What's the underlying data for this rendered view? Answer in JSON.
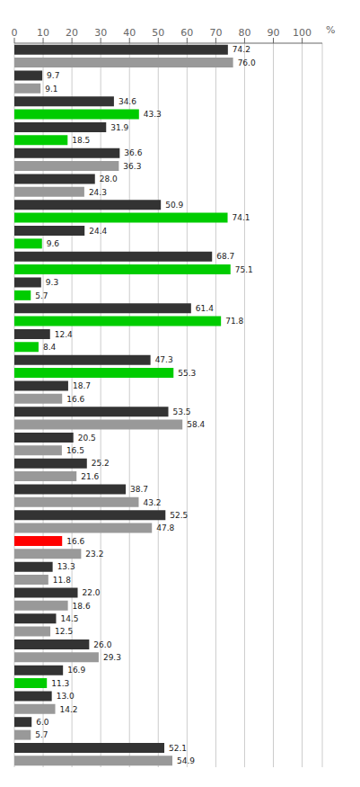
{
  "chart_data": {
    "type": "bar",
    "orientation": "horizontal",
    "categories": [
      null,
      null,
      null,
      null,
      null,
      null,
      null,
      null,
      null,
      null,
      null,
      null,
      null,
      null,
      null,
      null,
      null,
      null,
      null,
      null,
      null,
      null,
      null,
      null,
      null,
      null,
      null,
      null,
      null,
      null,
      null,
      null,
      null,
      null,
      null,
      null,
      null,
      null,
      null,
      null,
      null,
      null,
      null,
      null,
      null,
      null,
      null,
      null,
      null,
      null,
      null,
      null,
      null,
      null,
      null,
      null
    ],
    "values": [
      74.2,
      76.0,
      9.7,
      9.1,
      34.6,
      43.3,
      31.9,
      18.5,
      36.6,
      36.3,
      28.0,
      24.3,
      50.9,
      74.1,
      24.4,
      9.6,
      68.7,
      75.1,
      9.3,
      5.7,
      61.4,
      71.8,
      12.4,
      8.4,
      47.3,
      55.3,
      18.7,
      16.6,
      53.5,
      58.4,
      20.5,
      16.5,
      25.2,
      21.6,
      38.7,
      43.2,
      52.5,
      47.8,
      16.6,
      23.2,
      13.3,
      11.8,
      22.0,
      18.6,
      14.5,
      12.5,
      26.0,
      29.3,
      16.9,
      11.3,
      13.0,
      14.2,
      6.0,
      5.7,
      52.1,
      54.9
    ],
    "value_labels": [
      "74.2",
      "76.0",
      "9.7",
      "9.1",
      "34.6",
      "43.3",
      "31.9",
      "18.5",
      "36.6",
      "36.3",
      "28.0",
      "24.3",
      "50.9",
      "74.1",
      "24.4",
      "9.6",
      "68.7",
      "75.1",
      "9.3",
      "5.7",
      "61.4",
      "71.8",
      "12.4",
      "8.4",
      "47.3",
      "55.3",
      "18.7",
      "16.6",
      "53.5",
      "58.4",
      "20.5",
      "16.5",
      "25.2",
      "21.6",
      "38.7",
      "43.2",
      "52.5",
      "47.8",
      "16.6",
      "23.2",
      "13.3",
      "11.8",
      "22.0",
      "18.6",
      "14.5",
      "12.5",
      "26.0",
      "29.3",
      "16.9",
      "11.3",
      "13.0",
      "14.2",
      "6.0",
      "5.7",
      "52.1",
      "54.9"
    ],
    "colors": [
      "#333333",
      "#999999",
      "#333333",
      "#999999",
      "#333333",
      "#00cc00",
      "#333333",
      "#00cc00",
      "#333333",
      "#999999",
      "#333333",
      "#999999",
      "#333333",
      "#00cc00",
      "#333333",
      "#00cc00",
      "#333333",
      "#00cc00",
      "#333333",
      "#00cc00",
      "#333333",
      "#00cc00",
      "#333333",
      "#00cc00",
      "#333333",
      "#00cc00",
      "#333333",
      "#999999",
      "#333333",
      "#999999",
      "#333333",
      "#999999",
      "#333333",
      "#999999",
      "#333333",
      "#999999",
      "#333333",
      "#999999",
      "#ff0000",
      "#999999",
      "#333333",
      "#999999",
      "#333333",
      "#999999",
      "#333333",
      "#999999",
      "#333333",
      "#999999",
      "#333333",
      "#00cc00",
      "#333333",
      "#999999",
      "#333333",
      "#999999",
      "#333333",
      "#999999"
    ],
    "xlim": [
      0,
      107
    ],
    "xticks": [
      0,
      10,
      20,
      30,
      40,
      50,
      60,
      70,
      80,
      90,
      100
    ],
    "annotations": [
      {
        "text": "%"
      }
    ],
    "grid": true,
    "data_labels": true,
    "tick_labels": "x"
  }
}
